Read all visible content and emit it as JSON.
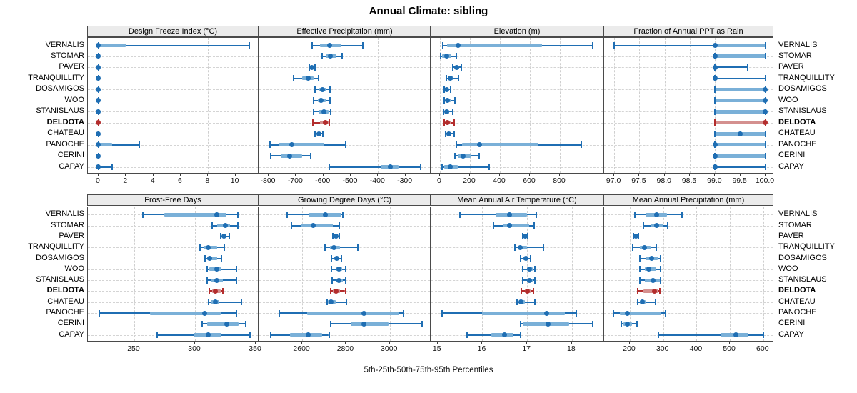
{
  "title": "Annual Climate: sibling",
  "caption": "5th-25th-50th-75th-95th Percentiles",
  "sites": [
    "VERNALIS",
    "STOMAR",
    "PAVER",
    "TRANQUILLITY",
    "DOSAMIGOS",
    "WOO",
    "STANISLAUS",
    "DELDOTA",
    "CHATEAU",
    "PANOCHE",
    "CERINI",
    "CAPAY"
  ],
  "highlight_site": "DELDOTA",
  "colors": {
    "series": "#1f6eb3",
    "series_band": "#7ab0d8",
    "highlight": "#b32d2d",
    "highlight_band": "#d4908f",
    "strip_bg": "#ebebeb",
    "panel_border": "#4a4a4a",
    "grid": "#cfcfcf"
  },
  "chart_data": {
    "type": "dotplot-percentiles",
    "percentiles": [
      5,
      25,
      50,
      75,
      95
    ],
    "note": "values arrays are [p5,p25,p50,p75,p95] per site, in sites order",
    "panels": [
      {
        "title": "Design Freeze Index (°C)",
        "row": 0,
        "col": 0,
        "xlim": [
          -0.78,
          11.74
        ],
        "ticks": [
          0,
          2,
          4,
          6,
          8,
          10
        ],
        "tick_labels": [
          "0",
          "2",
          "4",
          "6",
          "8",
          "10"
        ],
        "values": [
          [
            0,
            0,
            0,
            2,
            11
          ],
          [
            0,
            0,
            0,
            0,
            0
          ],
          [
            0,
            0,
            0,
            0,
            0
          ],
          [
            0,
            0,
            0,
            0,
            0
          ],
          [
            0,
            0,
            0,
            0,
            0
          ],
          [
            0,
            0,
            0,
            0,
            0
          ],
          [
            0,
            0,
            0,
            0,
            0
          ],
          [
            0,
            0,
            0,
            0,
            0
          ],
          [
            0,
            0,
            0,
            0,
            0
          ],
          [
            0,
            0,
            0,
            1,
            3
          ],
          [
            0,
            0,
            0,
            0,
            0
          ],
          [
            0,
            0,
            0,
            0,
            1
          ]
        ]
      },
      {
        "title": "Effective Precipitation (mm)",
        "row": 0,
        "col": 1,
        "xlim": [
          -834,
          -205
        ],
        "ticks": [
          -800,
          -700,
          -600,
          -500,
          -400,
          -300
        ],
        "tick_labels": [
          "-800",
          "-700",
          "-600",
          "-500",
          "-400",
          "-300"
        ],
        "values": [
          [
            -640,
            -612,
            -578,
            -535,
            -455
          ],
          [
            -604,
            -590,
            -574,
            -552,
            -530
          ],
          [
            -652,
            -646,
            -641,
            -635,
            -630
          ],
          [
            -709,
            -678,
            -654,
            -635,
            -617
          ],
          [
            -630,
            -616,
            -603,
            -588,
            -576
          ],
          [
            -635,
            -620,
            -609,
            -591,
            -576
          ],
          [
            -635,
            -618,
            -598,
            -582,
            -574
          ],
          [
            -637,
            -613,
            -593,
            -581,
            -577
          ],
          [
            -630,
            -623,
            -617,
            -610,
            -603
          ],
          [
            -796,
            -763,
            -715,
            -596,
            -519
          ],
          [
            -791,
            -757,
            -722,
            -678,
            -646
          ],
          [
            -578,
            -391,
            -354,
            -326,
            -243
          ]
        ]
      },
      {
        "title": "Elevation (m)",
        "row": 0,
        "col": 2,
        "xlim": [
          -57,
          1095
        ],
        "ticks": [
          0,
          200,
          400,
          600,
          800
        ],
        "tick_labels": [
          "0",
          "200",
          "400",
          "600",
          "800"
        ],
        "values": [
          [
            20,
            48,
            122,
            680,
            1020
          ],
          [
            6,
            14,
            46,
            78,
            110
          ],
          [
            86,
            100,
            114,
            130,
            144
          ],
          [
            41,
            55,
            70,
            90,
            125
          ],
          [
            30,
            38,
            46,
            58,
            70
          ],
          [
            30,
            40,
            51,
            70,
            98
          ],
          [
            25,
            36,
            46,
            62,
            86
          ],
          [
            30,
            40,
            51,
            72,
            94
          ],
          [
            38,
            50,
            62,
            78,
            94
          ],
          [
            110,
            149,
            263,
            657,
            943
          ],
          [
            98,
            117,
            157,
            205,
            260
          ],
          [
            14,
            30,
            67,
            117,
            327
          ]
        ]
      },
      {
        "title": "Fraction of Annual PPT as Rain",
        "row": 0,
        "col": 3,
        "xlim": [
          96.8,
          100.17
        ],
        "ticks": [
          97.0,
          97.5,
          98.0,
          98.5,
          99.0,
          99.5,
          100.0
        ],
        "tick_labels": [
          "97.0",
          "97.5",
          "98.0",
          "98.5",
          "99.0",
          "99.5",
          "100.0"
        ],
        "values": [
          [
            97.0,
            99.0,
            99.0,
            100.0,
            100.0
          ],
          [
            99.0,
            99.0,
            99.0,
            100.0,
            100.0
          ],
          [
            99.0,
            99.0,
            99.0,
            99.0,
            99.65
          ],
          [
            99.0,
            99.0,
            99.0,
            99.0,
            100.0
          ],
          [
            99.0,
            99.0,
            100.0,
            100.0,
            100.0
          ],
          [
            99.0,
            99.0,
            100.0,
            100.0,
            100.0
          ],
          [
            99.0,
            99.0,
            100.0,
            100.0,
            100.0
          ],
          [
            99.0,
            99.0,
            100.0,
            100.0,
            100.0
          ],
          [
            99.0,
            99.0,
            99.5,
            100.0,
            100.0
          ],
          [
            99.0,
            99.0,
            99.0,
            100.0,
            100.0
          ],
          [
            99.0,
            99.0,
            99.0,
            100.0,
            100.0
          ],
          [
            99.0,
            99.0,
            99.0,
            99.0,
            100.0
          ]
        ]
      },
      {
        "title": "Frost-Free Days",
        "row": 1,
        "col": 0,
        "xlim": [
          211.8,
          352.9
        ],
        "ticks": [
          250,
          300,
          350
        ],
        "tick_labels": [
          "250",
          "300",
          "350"
        ],
        "values": [
          [
            257,
            275,
            318,
            326,
            335
          ],
          [
            314,
            318,
            325,
            329,
            335
          ],
          [
            321,
            323,
            324,
            326,
            328
          ],
          [
            304,
            307,
            311,
            318,
            324
          ],
          [
            308,
            310,
            312,
            318,
            322
          ],
          [
            310,
            312,
            318,
            322,
            334
          ],
          [
            310,
            313,
            318,
            323,
            334
          ],
          [
            312,
            314,
            317,
            321,
            323
          ],
          [
            311,
            313,
            317,
            320,
            338
          ],
          [
            221,
            263,
            308,
            321,
            334
          ],
          [
            306,
            310,
            326,
            336,
            342
          ],
          [
            269,
            299,
            311,
            322,
            345
          ]
        ]
      },
      {
        "title": "Growing Degree Days (°C)",
        "row": 1,
        "col": 1,
        "xlim": [
          2404,
          3190
        ],
        "ticks": [
          2600,
          2800,
          3000
        ],
        "tick_labels": [
          "2600",
          "2800",
          "3000"
        ],
        "values": [
          [
            2530,
            2630,
            2705,
            2780,
            2785
          ],
          [
            2550,
            2595,
            2650,
            2740,
            2770
          ],
          [
            2740,
            2746,
            2755,
            2763,
            2770
          ],
          [
            2705,
            2727,
            2745,
            2772,
            2855
          ],
          [
            2735,
            2747,
            2758,
            2769,
            2780
          ],
          [
            2734,
            2752,
            2769,
            2784,
            2800
          ],
          [
            2737,
            2753,
            2769,
            2785,
            2800
          ],
          [
            2731,
            2741,
            2755,
            2774,
            2797
          ],
          [
            2713,
            2716,
            2731,
            2753,
            2801
          ],
          [
            2496,
            2622,
            2881,
            3043,
            3062
          ],
          [
            2731,
            2820,
            2881,
            2993,
            3146
          ],
          [
            2456,
            2545,
            2627,
            2692,
            2722
          ]
        ]
      },
      {
        "title": "Mean Annual Air Temperature (°C)",
        "row": 1,
        "col": 2,
        "xlim": [
          14.86,
          18.72
        ],
        "ticks": [
          15,
          16,
          17,
          18
        ],
        "tick_labels": [
          "15",
          "16",
          "17",
          "18"
        ],
        "values": [
          [
            15.5,
            16.3,
            16.6,
            17.0,
            17.2
          ],
          [
            16.25,
            16.45,
            16.6,
            17.05,
            17.15
          ],
          [
            16.9,
            16.92,
            16.95,
            16.99,
            17.02
          ],
          [
            16.73,
            16.8,
            16.85,
            17.0,
            17.36
          ],
          [
            16.85,
            16.9,
            16.97,
            17.03,
            17.07
          ],
          [
            16.9,
            17.0,
            17.06,
            17.12,
            17.17
          ],
          [
            16.9,
            17.0,
            17.06,
            17.12,
            17.18
          ],
          [
            16.87,
            16.95,
            17.01,
            17.08,
            17.14
          ],
          [
            16.77,
            16.82,
            16.86,
            16.95,
            17.17
          ],
          [
            15.1,
            16.0,
            17.44,
            17.84,
            18.1
          ],
          [
            16.85,
            16.9,
            17.47,
            17.94,
            18.47
          ],
          [
            15.65,
            16.2,
            16.5,
            16.7,
            16.86
          ]
        ]
      },
      {
        "title": "Mean Annual Precipitation (mm)",
        "row": 1,
        "col": 3,
        "xlim": [
          122.9,
          632.5
        ],
        "ticks": [
          200,
          300,
          400,
          500,
          600
        ],
        "tick_labels": [
          "200",
          "300",
          "400",
          "500",
          "600"
        ],
        "values": [
          [
            216,
            248,
            280,
            312,
            357
          ],
          [
            240,
            262,
            280,
            301,
            314
          ],
          [
            210,
            214,
            218,
            222,
            226
          ],
          [
            209,
            230,
            244,
            262,
            279
          ],
          [
            229,
            248,
            266,
            284,
            291
          ],
          [
            229,
            245,
            257,
            280,
            291
          ],
          [
            230,
            244,
            269,
            289,
            292
          ],
          [
            224,
            240,
            273,
            285,
            290
          ],
          [
            223,
            229,
            237,
            248,
            276
          ],
          [
            150,
            170,
            193,
            295,
            308
          ],
          [
            174,
            181,
            193,
            207,
            221
          ],
          [
            285,
            472,
            517,
            556,
            600
          ]
        ]
      }
    ]
  }
}
